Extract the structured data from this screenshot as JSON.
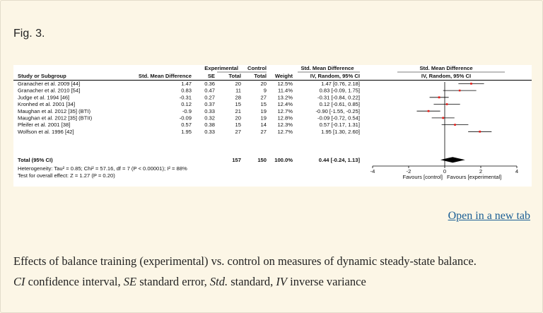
{
  "figure": {
    "label": "Fig. 3.",
    "open_link": "Open in a new tab",
    "caption_line1": "Effects of balance training (experimental) vs. control on measures of dynamic steady-state balance.",
    "caption_abbrevs": [
      {
        "abbr": "CI",
        "text": " confidence interval, "
      },
      {
        "abbr": "SE",
        "text": " standard error, "
      },
      {
        "abbr": "Std.",
        "text": " standard, "
      },
      {
        "abbr": "IV",
        "text": " inverse variance"
      }
    ]
  },
  "chart_data": {
    "type": "forest",
    "headers": {
      "group_experimental": "Experimental",
      "group_control": "Control",
      "smd_group": "Std. Mean Difference",
      "plot_group": "Std. Mean Difference",
      "study": "Study or Subgroup",
      "smd": "Std. Mean Difference",
      "se": "SE",
      "total_exp": "Total",
      "total_ctrl": "Total",
      "weight": "Weight",
      "ci_method": "IV, Random, 95% CI",
      "plot_method": "IV, Random, 95% CI"
    },
    "studies": [
      {
        "name": "Granacher et al. 2009 [44]",
        "smd": "1.47",
        "se": "0.36",
        "n_exp": "20",
        "n_ctrl": "20",
        "weight": "12.5%",
        "ci_text": "1.47 [0.76, 2.18]",
        "est": 1.47,
        "lo": 0.76,
        "hi": 2.18,
        "w": 12.5
      },
      {
        "name": "Granacher et al. 2010 [54]",
        "smd": "0.83",
        "se": "0.47",
        "n_exp": "11",
        "n_ctrl": "9",
        "weight": "11.4%",
        "ci_text": "0.83 [-0.09, 1.75]",
        "est": 0.83,
        "lo": -0.09,
        "hi": 1.75,
        "w": 11.4
      },
      {
        "name": "Judge et al. 1994 [46]",
        "smd": "-0.31",
        "se": "0.27",
        "n_exp": "28",
        "n_ctrl": "27",
        "weight": "13.2%",
        "ci_text": "-0.31 [-0.84, 0.22]",
        "est": -0.31,
        "lo": -0.84,
        "hi": 0.22,
        "w": 13.2
      },
      {
        "name": "Kronhed et al. 2001 [34]",
        "smd": "0.12",
        "se": "0.37",
        "n_exp": "15",
        "n_ctrl": "15",
        "weight": "12.4%",
        "ci_text": "0.12 [-0.61, 0.85]",
        "est": 0.12,
        "lo": -0.61,
        "hi": 0.85,
        "w": 12.4
      },
      {
        "name": "Maughan et al. 2012 [35] (BTI)",
        "smd": "-0.9",
        "se": "0.33",
        "n_exp": "21",
        "n_ctrl": "19",
        "weight": "12.7%",
        "ci_text": "-0.90 [-1.55, -0.25]",
        "est": -0.9,
        "lo": -1.55,
        "hi": -0.25,
        "w": 12.7
      },
      {
        "name": "Maughan et al. 2012 [35] (BTII)",
        "smd": "-0.09",
        "se": "0.32",
        "n_exp": "20",
        "n_ctrl": "19",
        "weight": "12.8%",
        "ci_text": "-0.09 [-0.72, 0.54]",
        "est": -0.09,
        "lo": -0.72,
        "hi": 0.54,
        "w": 12.8
      },
      {
        "name": "Pfeifer et al. 2001 [38]",
        "smd": "0.57",
        "se": "0.38",
        "n_exp": "15",
        "n_ctrl": "14",
        "weight": "12.3%",
        "ci_text": "0.57 [-0.17, 1.31]",
        "est": 0.57,
        "lo": -0.17,
        "hi": 1.31,
        "w": 12.3
      },
      {
        "name": "Wolfson et al. 1996 [42]",
        "smd": "1.95",
        "se": "0.33",
        "n_exp": "27",
        "n_ctrl": "27",
        "weight": "12.7%",
        "ci_text": "1.95 [1.30, 2.60]",
        "est": 1.95,
        "lo": 1.3,
        "hi": 2.6,
        "w": 12.7
      }
    ],
    "total": {
      "name": "Total (95% CI)",
      "n_exp": "157",
      "n_ctrl": "150",
      "weight": "100.0%",
      "ci_text": "0.44 [-0.24, 1.13]",
      "est": 0.44,
      "lo": -0.24,
      "hi": 1.13
    },
    "heterogeneity": "Heterogeneity: Tau² = 0.85; Chi² = 57.16, df = 7 (P < 0.00001); I² = 88%",
    "overall_test": "Test for overall effect: Z = 1.27 (P = 0.20)",
    "x_ticks": [
      -4,
      -2,
      0,
      2,
      4
    ],
    "x_tick_labels": [
      "-4",
      "-2",
      "0",
      "2",
      "4"
    ],
    "xlim": [
      -4,
      4
    ],
    "favours_left": "Favours [control]",
    "favours_right": "Favours [experimental]",
    "colors": {
      "point": "#e8201c",
      "diamond": "#000000",
      "line": "#000000"
    }
  }
}
